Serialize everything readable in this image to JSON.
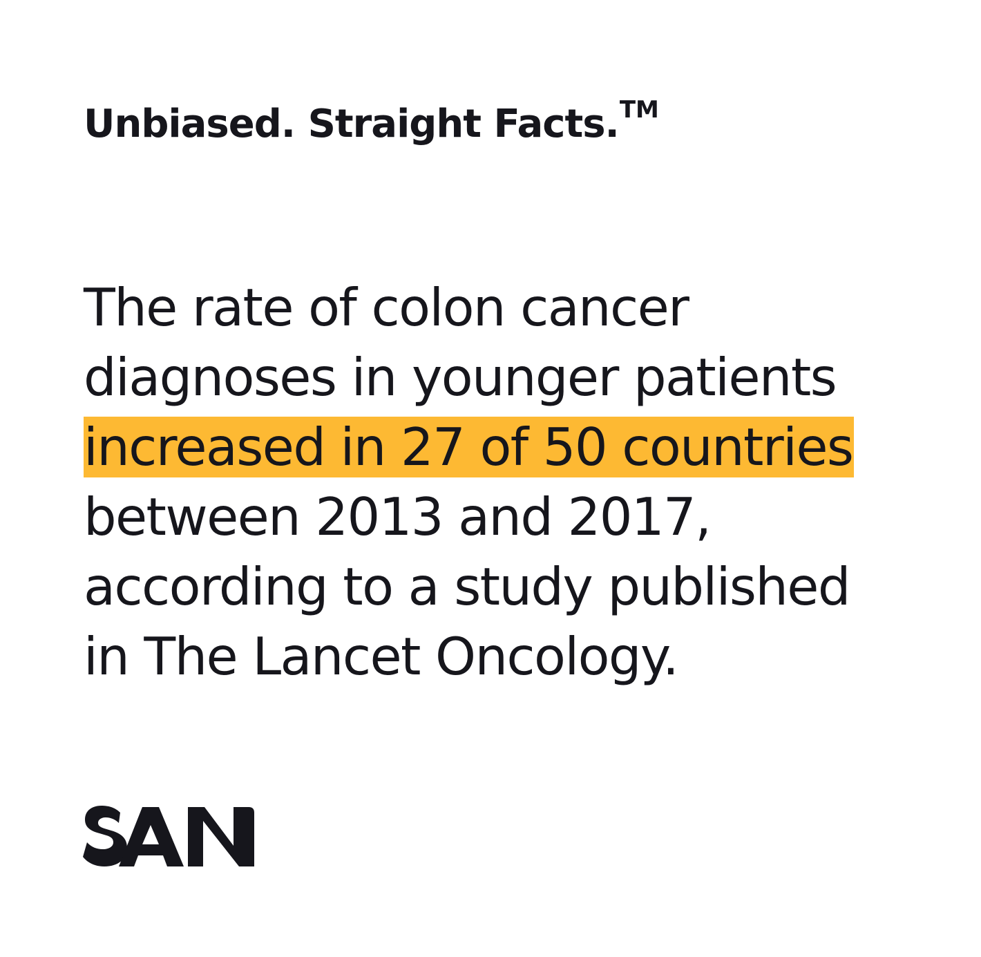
{
  "tagline": {
    "text": "Unbiased. Straight Facts.",
    "trademark": "TM"
  },
  "fact": {
    "lines": [
      "The rate of colon cancer",
      "diagnoses in younger patients",
      "increased in 27 of 50 countries",
      "between 2013 and 2017,",
      "according to a study published",
      "in The Lancet Oncology."
    ],
    "highlight_color": "#fdb933"
  },
  "logo": {
    "text": "SAN",
    "color": "#16161c"
  }
}
